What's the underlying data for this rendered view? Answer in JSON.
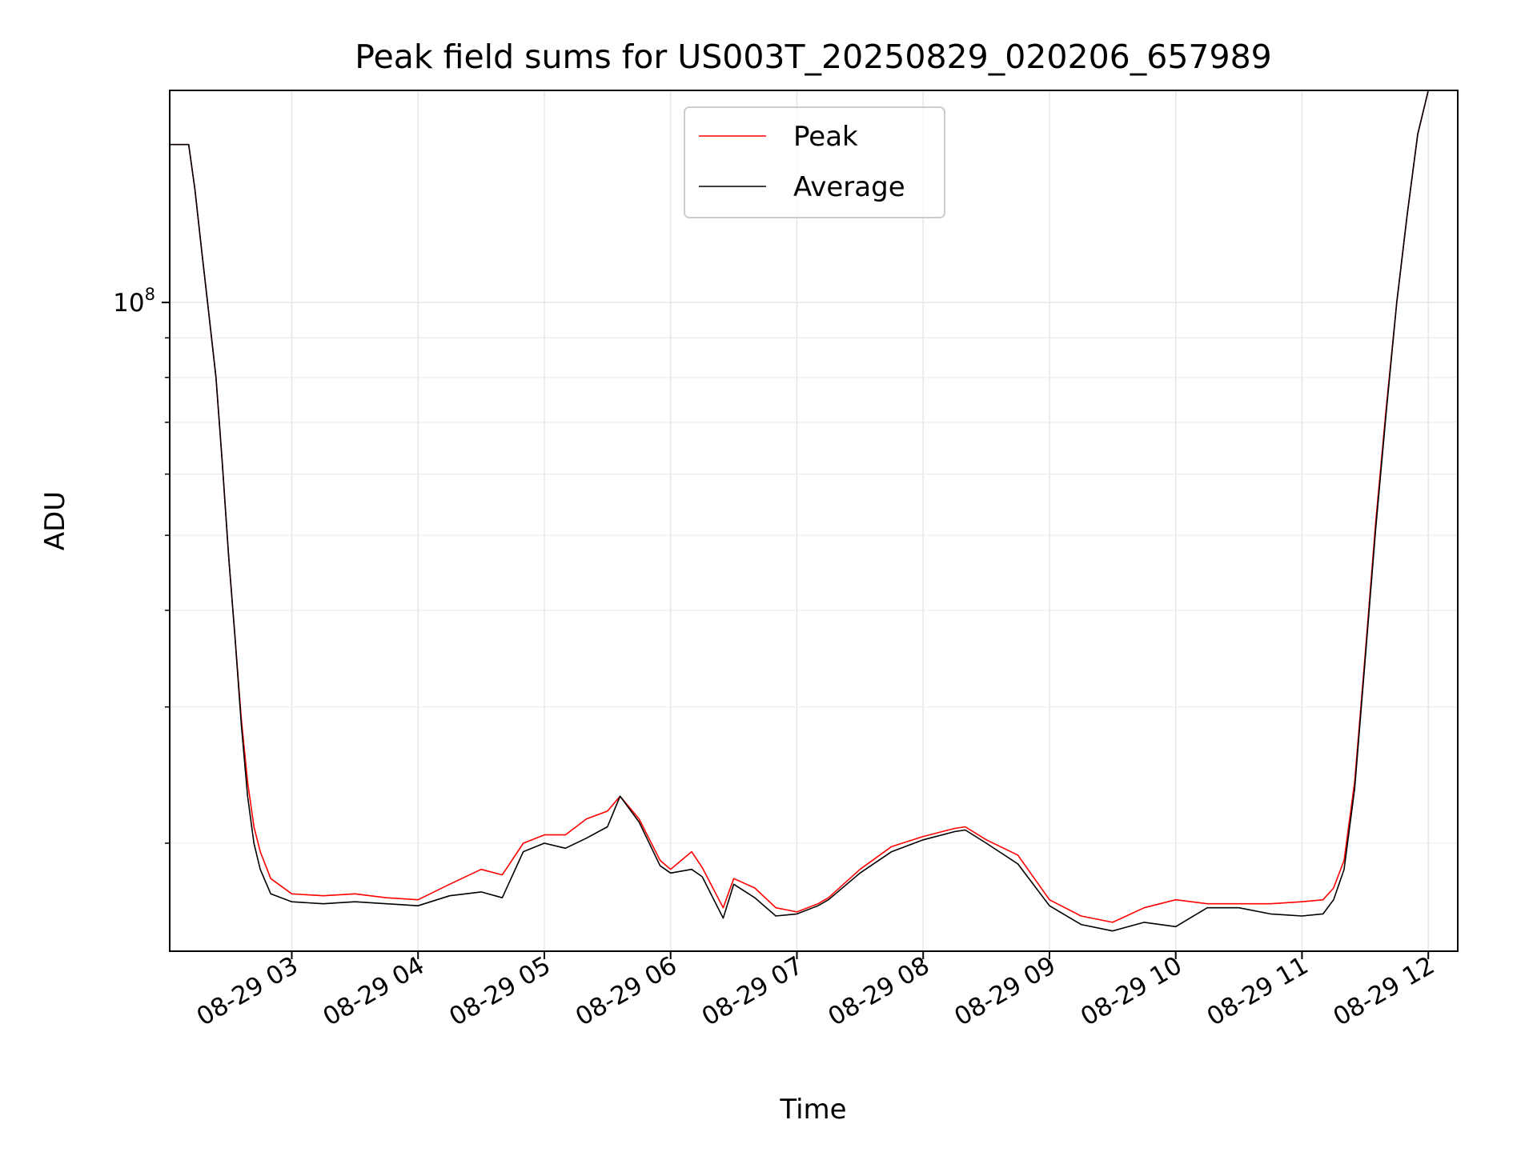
{
  "chart_data": {
    "type": "line",
    "title": "Peak field sums for US003T_20250829_020206_657989",
    "xlabel": "Time",
    "ylabel": "ADU",
    "yscale": "log",
    "xlim": [
      "2025-08-29 02:02",
      "2025-08-29 12:14"
    ],
    "ylim": [
      14500000,
      188000000
    ],
    "grid": true,
    "grid_minor_y": true,
    "legend_position": "top-center",
    "x_ticks": [
      "08-29 03",
      "08-29 04",
      "08-29 05",
      "08-29 06",
      "08-29 07",
      "08-29 08",
      "08-29 09",
      "08-29 10",
      "08-29 11",
      "08-29 12"
    ],
    "y_major_tick_label": "10",
    "y_major_tick_exponent": "8",
    "colors": {
      "peak": "#ff0000",
      "average": "#000000"
    },
    "series": [
      {
        "name": "Peak",
        "color": "#ff0000",
        "x": [
          "02:02",
          "02:05",
          "02:07",
          "02:09",
          "02:11",
          "02:14",
          "02:17",
          "02:20",
          "02:24",
          "02:27",
          "02:30",
          "02:33",
          "02:36",
          "02:39",
          "02:42",
          "02:45",
          "02:50",
          "03:00",
          "03:15",
          "03:30",
          "03:45",
          "04:00",
          "04:15",
          "04:30",
          "04:40",
          "04:50",
          "05:00",
          "05:10",
          "05:20",
          "05:30",
          "05:36",
          "05:45",
          "05:55",
          "06:00",
          "06:10",
          "06:15",
          "06:25",
          "06:30",
          "06:40",
          "06:50",
          "07:00",
          "07:10",
          "07:15",
          "07:30",
          "07:45",
          "08:00",
          "08:15",
          "08:20",
          "08:30",
          "08:45",
          "09:00",
          "09:15",
          "09:30",
          "09:45",
          "10:00",
          "10:15",
          "10:30",
          "10:45",
          "11:00",
          "11:10",
          "11:15",
          "11:20",
          "11:25",
          "11:30",
          "11:35",
          "11:40",
          "11:45",
          "11:50",
          "11:55",
          "12:00"
        ],
        "values": [
          160000000,
          160000000,
          160000000,
          160000000,
          160000000,
          140000000,
          118000000,
          100000000,
          80000000,
          62000000,
          47000000,
          37000000,
          29000000,
          24000000,
          21000000,
          19500000,
          18000000,
          17200000,
          17100000,
          17200000,
          17000000,
          16900000,
          17700000,
          18500000,
          18200000,
          20000000,
          20500000,
          20500000,
          21500000,
          22000000,
          23000000,
          21500000,
          19000000,
          18500000,
          19500000,
          18600000,
          16500000,
          18000000,
          17500000,
          16500000,
          16300000,
          16700000,
          17000000,
          18500000,
          19800000,
          20400000,
          20900000,
          21000000,
          20200000,
          19300000,
          16900000,
          16100000,
          15800000,
          16500000,
          16900000,
          16700000,
          16700000,
          16700000,
          16800000,
          16900000,
          17500000,
          19000000,
          24000000,
          35000000,
          52000000,
          73000000,
          100000000,
          130000000,
          165000000,
          188000000
        ]
      },
      {
        "name": "Average",
        "color": "#000000",
        "x": [
          "02:02",
          "02:05",
          "02:07",
          "02:09",
          "02:11",
          "02:14",
          "02:17",
          "02:20",
          "02:24",
          "02:27",
          "02:30",
          "02:33",
          "02:36",
          "02:39",
          "02:42",
          "02:45",
          "02:50",
          "03:00",
          "03:15",
          "03:30",
          "03:45",
          "04:00",
          "04:15",
          "04:30",
          "04:40",
          "04:50",
          "05:00",
          "05:10",
          "05:20",
          "05:30",
          "05:36",
          "05:45",
          "05:55",
          "06:00",
          "06:10",
          "06:15",
          "06:25",
          "06:30",
          "06:40",
          "06:50",
          "07:00",
          "07:10",
          "07:15",
          "07:30",
          "07:45",
          "08:00",
          "08:15",
          "08:20",
          "08:30",
          "08:45",
          "09:00",
          "09:15",
          "09:30",
          "09:45",
          "10:00",
          "10:15",
          "10:30",
          "10:45",
          "11:00",
          "11:10",
          "11:15",
          "11:20",
          "11:25",
          "11:30",
          "11:35",
          "11:40",
          "11:45",
          "11:50",
          "11:55",
          "12:00"
        ],
        "values": [
          160000000,
          160000000,
          160000000,
          160000000,
          160000000,
          140000000,
          118000000,
          100000000,
          80000000,
          62000000,
          47000000,
          37000000,
          28500000,
          23000000,
          20000000,
          18500000,
          17200000,
          16800000,
          16700000,
          16800000,
          16700000,
          16600000,
          17100000,
          17300000,
          17000000,
          19500000,
          20000000,
          19700000,
          20300000,
          21000000,
          23000000,
          21300000,
          18700000,
          18300000,
          18500000,
          18100000,
          16000000,
          17700000,
          17000000,
          16100000,
          16200000,
          16600000,
          16900000,
          18300000,
          19500000,
          20200000,
          20700000,
          20800000,
          20000000,
          18800000,
          16600000,
          15700000,
          15400000,
          15800000,
          15600000,
          16500000,
          16500000,
          16200000,
          16100000,
          16200000,
          16900000,
          18500000,
          23500000,
          34500000,
          51000000,
          72000000,
          100000000,
          130000000,
          165000000,
          188000000
        ]
      }
    ]
  }
}
